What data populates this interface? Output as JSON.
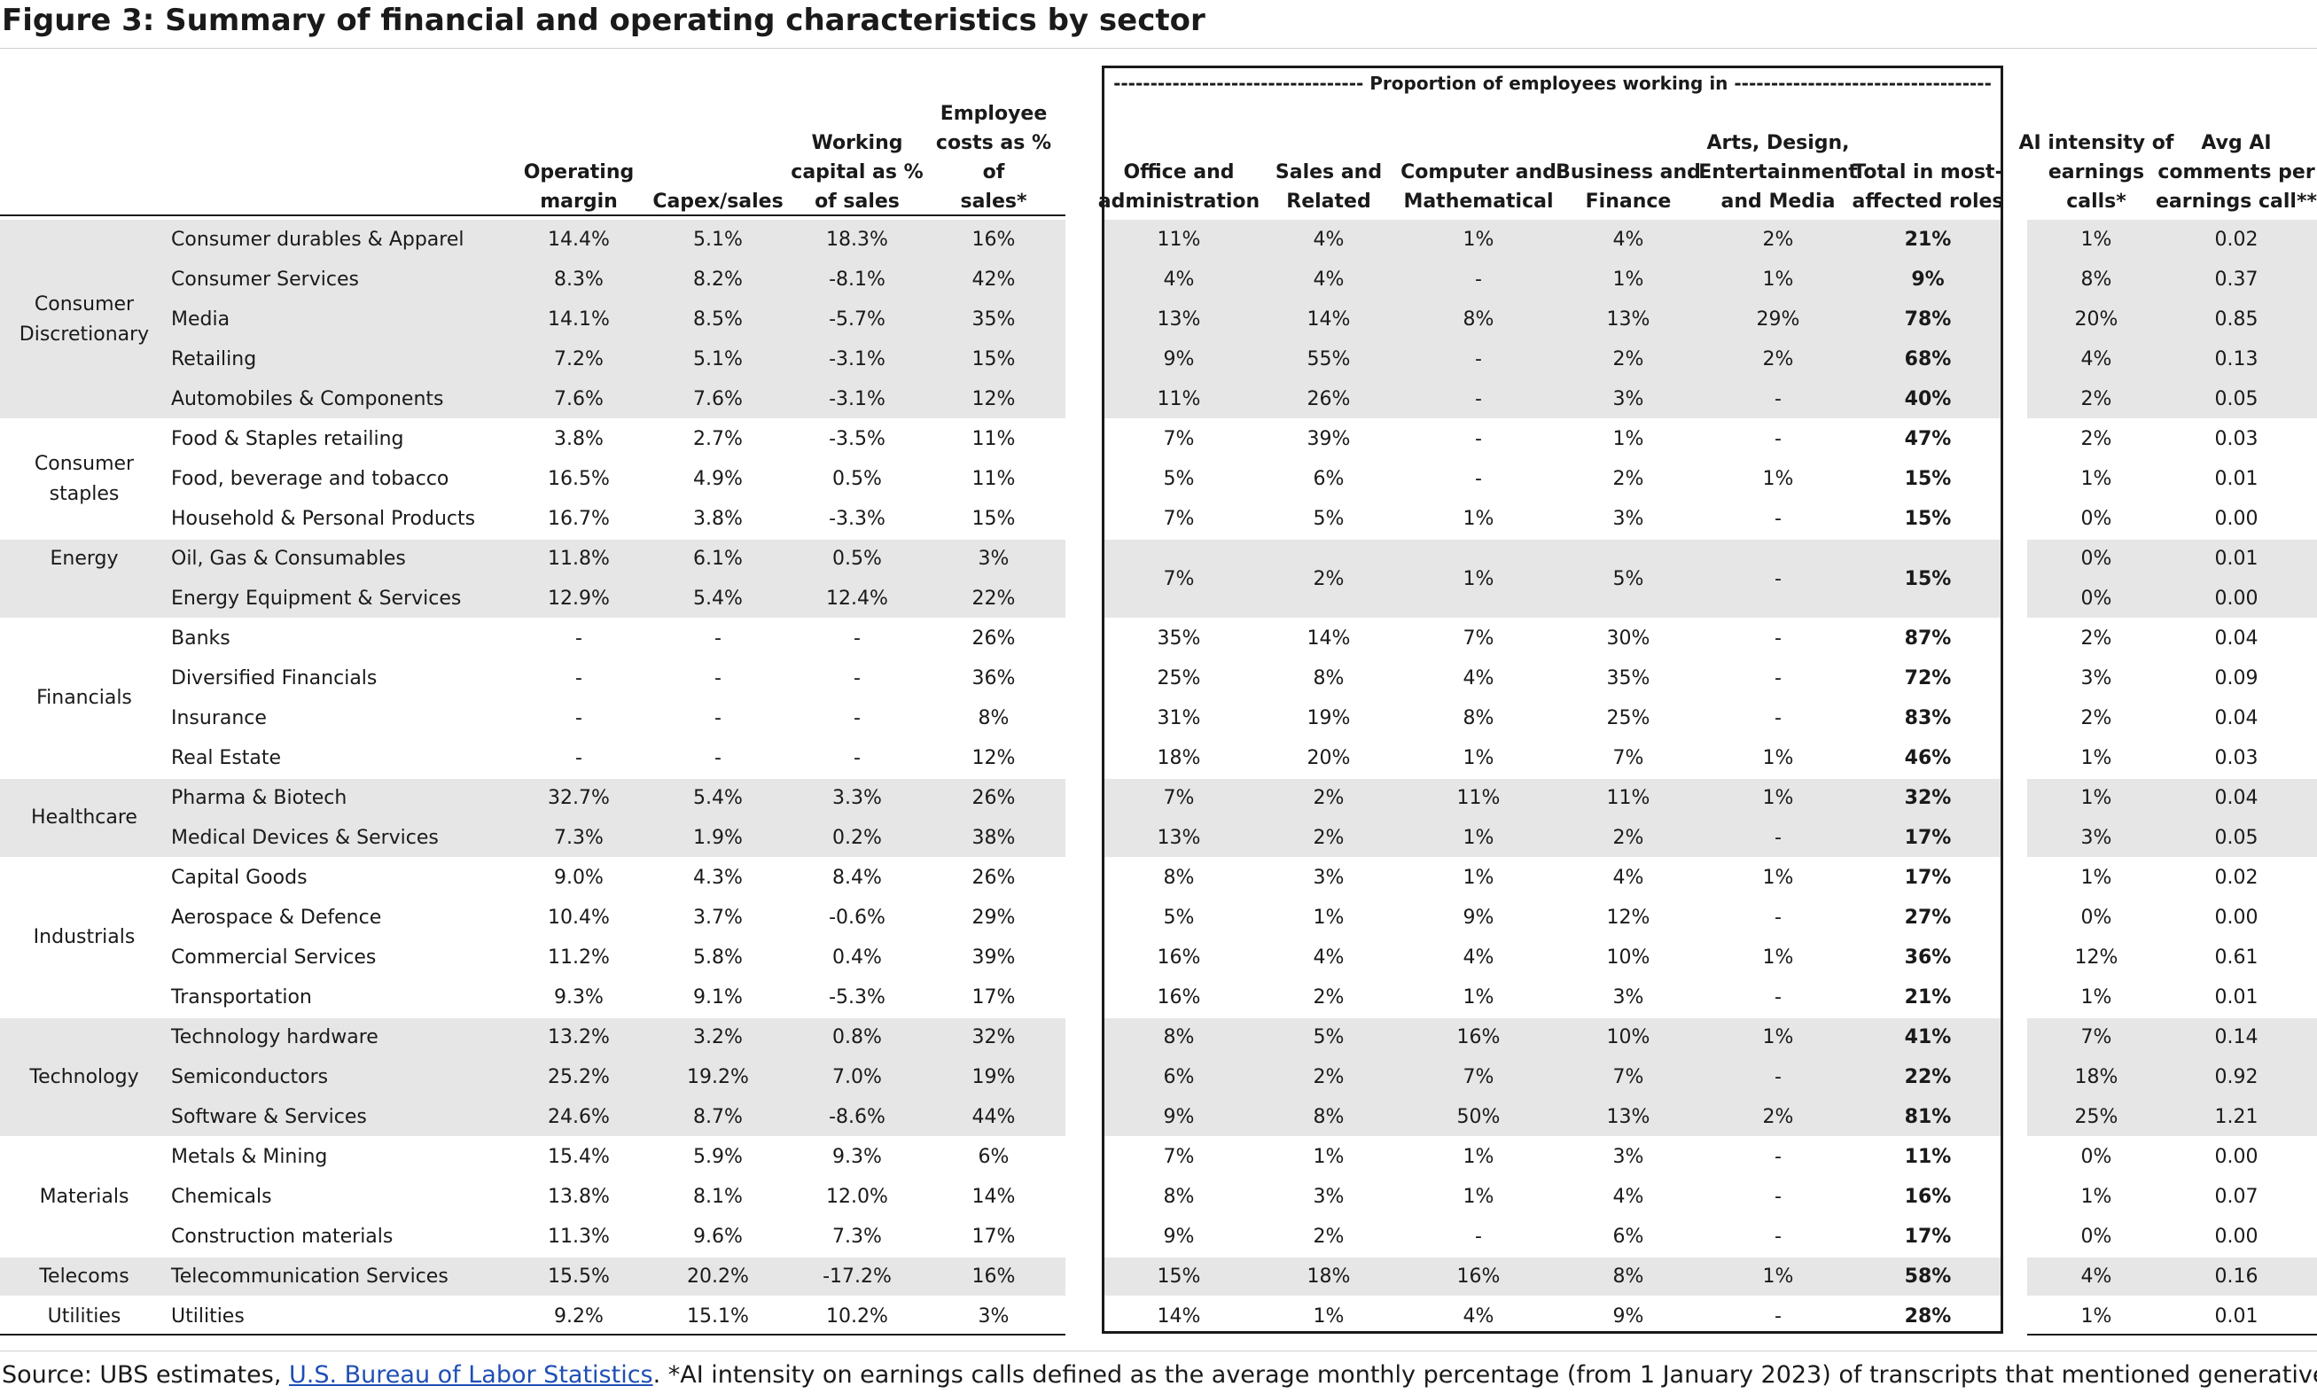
{
  "title": "Figure 3: Summary of financial and operating characteristics by sector",
  "box_header": "---------------------------------- Proportion of employees working in -----------------------------------",
  "columns": [
    "Operating margin",
    "Capex/sales",
    "Working capital as % of sales",
    "Employee costs as % of sales*",
    "Office and administration",
    "Sales and Related",
    "Computer and Mathematical",
    "Business and Finance",
    "Arts, Design, Entertainment and Media",
    "Total in most-affected roles",
    "AI intensity of earnings calls*",
    "Avg AI comments per earnings call**"
  ],
  "column_header_lines": [
    [
      "Operating",
      "margin"
    ],
    [
      "Capex/sales"
    ],
    [
      "Working",
      "capital as %",
      "of sales"
    ],
    [
      "Employee",
      "costs as % of",
      "sales*"
    ],
    [
      "Office and",
      "administration"
    ],
    [
      "Sales and",
      "Related"
    ],
    [
      "Computer and",
      "Mathematical"
    ],
    [
      "Business and",
      "Finance"
    ],
    [
      "Arts, Design,",
      "Entertainment",
      "and Media"
    ],
    [
      "Total in most-",
      "affected roles"
    ],
    [
      "AI intensity of",
      "earnings",
      "calls*"
    ],
    [
      "Avg AI",
      "comments per",
      "earnings call**"
    ]
  ],
  "sectors": [
    {
      "name": "Consumer Discretionary",
      "label_lines": [
        "Consumer",
        "Discretionary"
      ],
      "shaded": true,
      "rows": [
        {
          "industry": "Consumer durables & Apparel",
          "operating_margin": "14.4%",
          "capex_sales": "5.1%",
          "working_capital": "18.3%",
          "employee_costs": "16%",
          "office_admin": "11%",
          "sales_related": "4%",
          "computer_math": "1%",
          "business_finance": "4%",
          "arts_media": "2%",
          "total_affected": "21%",
          "ai_intensity": "1%",
          "avg_ai_comments": "0.02"
        },
        {
          "industry": "Consumer Services",
          "operating_margin": "8.3%",
          "capex_sales": "8.2%",
          "working_capital": "-8.1%",
          "employee_costs": "42%",
          "office_admin": "4%",
          "sales_related": "4%",
          "computer_math": "-",
          "business_finance": "1%",
          "arts_media": "1%",
          "total_affected": "9%",
          "ai_intensity": "8%",
          "avg_ai_comments": "0.37"
        },
        {
          "industry": "Media",
          "operating_margin": "14.1%",
          "capex_sales": "8.5%",
          "working_capital": "-5.7%",
          "employee_costs": "35%",
          "office_admin": "13%",
          "sales_related": "14%",
          "computer_math": "8%",
          "business_finance": "13%",
          "arts_media": "29%",
          "total_affected": "78%",
          "ai_intensity": "20%",
          "avg_ai_comments": "0.85"
        },
        {
          "industry": "Retailing",
          "operating_margin": "7.2%",
          "capex_sales": "5.1%",
          "working_capital": "-3.1%",
          "employee_costs": "15%",
          "office_admin": "9%",
          "sales_related": "55%",
          "computer_math": "-",
          "business_finance": "2%",
          "arts_media": "2%",
          "total_affected": "68%",
          "ai_intensity": "4%",
          "avg_ai_comments": "0.13"
        },
        {
          "industry": "Automobiles & Components",
          "operating_margin": "7.6%",
          "capex_sales": "7.6%",
          "working_capital": "-3.1%",
          "employee_costs": "12%",
          "office_admin": "11%",
          "sales_related": "26%",
          "computer_math": "-",
          "business_finance": "3%",
          "arts_media": "-",
          "total_affected": "40%",
          "ai_intensity": "2%",
          "avg_ai_comments": "0.05"
        }
      ]
    },
    {
      "name": "Consumer staples",
      "label_lines": [
        "Consumer",
        "staples"
      ],
      "shaded": false,
      "rows": [
        {
          "industry": "Food & Staples retailing",
          "operating_margin": "3.8%",
          "capex_sales": "2.7%",
          "working_capital": "-3.5%",
          "employee_costs": "11%",
          "office_admin": "7%",
          "sales_related": "39%",
          "computer_math": "-",
          "business_finance": "1%",
          "arts_media": "-",
          "total_affected": "47%",
          "ai_intensity": "2%",
          "avg_ai_comments": "0.03"
        },
        {
          "industry": "Food, beverage and tobacco",
          "operating_margin": "16.5%",
          "capex_sales": "4.9%",
          "working_capital": "0.5%",
          "employee_costs": "11%",
          "office_admin": "5%",
          "sales_related": "6%",
          "computer_math": "-",
          "business_finance": "2%",
          "arts_media": "1%",
          "total_affected": "15%",
          "ai_intensity": "1%",
          "avg_ai_comments": "0.01"
        },
        {
          "industry": "Household & Personal Products",
          "operating_margin": "16.7%",
          "capex_sales": "3.8%",
          "working_capital": "-3.3%",
          "employee_costs": "15%",
          "office_admin": "7%",
          "sales_related": "5%",
          "computer_math": "1%",
          "business_finance": "3%",
          "arts_media": "-",
          "total_affected": "15%",
          "ai_intensity": "0%",
          "avg_ai_comments": "0.00"
        }
      ]
    },
    {
      "name": "Energy",
      "label_lines": [
        "Energy"
      ],
      "label_align": "top",
      "shaded": true,
      "merged_roles": {
        "office_admin": "7%",
        "sales_related": "2%",
        "computer_math": "1%",
        "business_finance": "5%",
        "arts_media": "-",
        "total_affected": "15%"
      },
      "rows": [
        {
          "industry": "Oil, Gas & Consumables",
          "operating_margin": "11.8%",
          "capex_sales": "6.1%",
          "working_capital": "0.5%",
          "employee_costs": "3%",
          "ai_intensity": "0%",
          "avg_ai_comments": "0.01"
        },
        {
          "industry": "Energy Equipment & Services",
          "operating_margin": "12.9%",
          "capex_sales": "5.4%",
          "working_capital": "12.4%",
          "employee_costs": "22%",
          "ai_intensity": "0%",
          "avg_ai_comments": "0.00"
        }
      ]
    },
    {
      "name": "Financials",
      "label_lines": [
        "Financials"
      ],
      "shaded": false,
      "rows": [
        {
          "industry": "Banks",
          "operating_margin": "-",
          "capex_sales": "-",
          "working_capital": "-",
          "employee_costs": "26%",
          "office_admin": "35%",
          "sales_related": "14%",
          "computer_math": "7%",
          "business_finance": "30%",
          "arts_media": "-",
          "total_affected": "87%",
          "ai_intensity": "2%",
          "avg_ai_comments": "0.04"
        },
        {
          "industry": "Diversified Financials",
          "operating_margin": "-",
          "capex_sales": "-",
          "working_capital": "-",
          "employee_costs": "36%",
          "office_admin": "25%",
          "sales_related": "8%",
          "computer_math": "4%",
          "business_finance": "35%",
          "arts_media": "-",
          "total_affected": "72%",
          "ai_intensity": "3%",
          "avg_ai_comments": "0.09"
        },
        {
          "industry": "Insurance",
          "operating_margin": "-",
          "capex_sales": "-",
          "working_capital": "-",
          "employee_costs": "8%",
          "office_admin": "31%",
          "sales_related": "19%",
          "computer_math": "8%",
          "business_finance": "25%",
          "arts_media": "-",
          "total_affected": "83%",
          "ai_intensity": "2%",
          "avg_ai_comments": "0.04"
        },
        {
          "industry": "Real Estate",
          "operating_margin": "-",
          "capex_sales": "-",
          "working_capital": "-",
          "employee_costs": "12%",
          "office_admin": "18%",
          "sales_related": "20%",
          "computer_math": "1%",
          "business_finance": "7%",
          "arts_media": "1%",
          "total_affected": "46%",
          "ai_intensity": "1%",
          "avg_ai_comments": "0.03"
        }
      ]
    },
    {
      "name": "Healthcare",
      "label_lines": [
        "Healthcare"
      ],
      "shaded": true,
      "rows": [
        {
          "industry": "Pharma & Biotech",
          "operating_margin": "32.7%",
          "capex_sales": "5.4%",
          "working_capital": "3.3%",
          "employee_costs": "26%",
          "office_admin": "7%",
          "sales_related": "2%",
          "computer_math": "11%",
          "business_finance": "11%",
          "arts_media": "1%",
          "total_affected": "32%",
          "ai_intensity": "1%",
          "avg_ai_comments": "0.04"
        },
        {
          "industry": "Medical Devices & Services",
          "operating_margin": "7.3%",
          "capex_sales": "1.9%",
          "working_capital": "0.2%",
          "employee_costs": "38%",
          "office_admin": "13%",
          "sales_related": "2%",
          "computer_math": "1%",
          "business_finance": "2%",
          "arts_media": "-",
          "total_affected": "17%",
          "ai_intensity": "3%",
          "avg_ai_comments": "0.05"
        }
      ]
    },
    {
      "name": "Industrials",
      "label_lines": [
        "Industrials"
      ],
      "shaded": false,
      "rows": [
        {
          "industry": "Capital Goods",
          "operating_margin": "9.0%",
          "capex_sales": "4.3%",
          "working_capital": "8.4%",
          "employee_costs": "26%",
          "office_admin": "8%",
          "sales_related": "3%",
          "computer_math": "1%",
          "business_finance": "4%",
          "arts_media": "1%",
          "total_affected": "17%",
          "ai_intensity": "1%",
          "avg_ai_comments": "0.02"
        },
        {
          "industry": "Aerospace & Defence",
          "operating_margin": "10.4%",
          "capex_sales": "3.7%",
          "working_capital": "-0.6%",
          "employee_costs": "29%",
          "office_admin": "5%",
          "sales_related": "1%",
          "computer_math": "9%",
          "business_finance": "12%",
          "arts_media": "-",
          "total_affected": "27%",
          "ai_intensity": "0%",
          "avg_ai_comments": "0.00"
        },
        {
          "industry": "Commercial Services",
          "operating_margin": "11.2%",
          "capex_sales": "5.8%",
          "working_capital": "0.4%",
          "employee_costs": "39%",
          "office_admin": "16%",
          "sales_related": "4%",
          "computer_math": "4%",
          "business_finance": "10%",
          "arts_media": "1%",
          "total_affected": "36%",
          "ai_intensity": "12%",
          "avg_ai_comments": "0.61"
        },
        {
          "industry": "Transportation",
          "operating_margin": "9.3%",
          "capex_sales": "9.1%",
          "working_capital": "-5.3%",
          "employee_costs": "17%",
          "office_admin": "16%",
          "sales_related": "2%",
          "computer_math": "1%",
          "business_finance": "3%",
          "arts_media": "-",
          "total_affected": "21%",
          "ai_intensity": "1%",
          "avg_ai_comments": "0.01"
        }
      ]
    },
    {
      "name": "Technology",
      "label_lines": [
        "Technology"
      ],
      "shaded": true,
      "rows": [
        {
          "industry": "Technology hardware",
          "operating_margin": "13.2%",
          "capex_sales": "3.2%",
          "working_capital": "0.8%",
          "employee_costs": "32%",
          "office_admin": "8%",
          "sales_related": "5%",
          "computer_math": "16%",
          "business_finance": "10%",
          "arts_media": "1%",
          "total_affected": "41%",
          "ai_intensity": "7%",
          "avg_ai_comments": "0.14"
        },
        {
          "industry": "Semiconductors",
          "operating_margin": "25.2%",
          "capex_sales": "19.2%",
          "working_capital": "7.0%",
          "employee_costs": "19%",
          "office_admin": "6%",
          "sales_related": "2%",
          "computer_math": "7%",
          "business_finance": "7%",
          "arts_media": "-",
          "total_affected": "22%",
          "ai_intensity": "18%",
          "avg_ai_comments": "0.92"
        },
        {
          "industry": "Software & Services",
          "operating_margin": "24.6%",
          "capex_sales": "8.7%",
          "working_capital": "-8.6%",
          "employee_costs": "44%",
          "office_admin": "9%",
          "sales_related": "8%",
          "computer_math": "50%",
          "business_finance": "13%",
          "arts_media": "2%",
          "total_affected": "81%",
          "ai_intensity": "25%",
          "avg_ai_comments": "1.21"
        }
      ]
    },
    {
      "name": "Materials",
      "label_lines": [
        "Materials"
      ],
      "shaded": false,
      "rows": [
        {
          "industry": "Metals & Mining",
          "operating_margin": "15.4%",
          "capex_sales": "5.9%",
          "working_capital": "9.3%",
          "employee_costs": "6%",
          "office_admin": "7%",
          "sales_related": "1%",
          "computer_math": "1%",
          "business_finance": "3%",
          "arts_media": "-",
          "total_affected": "11%",
          "ai_intensity": "0%",
          "avg_ai_comments": "0.00"
        },
        {
          "industry": "Chemicals",
          "operating_margin": "13.8%",
          "capex_sales": "8.1%",
          "working_capital": "12.0%",
          "employee_costs": "14%",
          "office_admin": "8%",
          "sales_related": "3%",
          "computer_math": "1%",
          "business_finance": "4%",
          "arts_media": "-",
          "total_affected": "16%",
          "ai_intensity": "1%",
          "avg_ai_comments": "0.07"
        },
        {
          "industry": "Construction materials",
          "operating_margin": "11.3%",
          "capex_sales": "9.6%",
          "working_capital": "7.3%",
          "employee_costs": "17%",
          "office_admin": "9%",
          "sales_related": "2%",
          "computer_math": "-",
          "business_finance": "6%",
          "arts_media": "-",
          "total_affected": "17%",
          "ai_intensity": "0%",
          "avg_ai_comments": "0.00"
        }
      ]
    },
    {
      "name": "Telecoms",
      "label_lines": [
        "Telecoms"
      ],
      "shaded": true,
      "rows": [
        {
          "industry": "Telecommunication Services",
          "operating_margin": "15.5%",
          "capex_sales": "20.2%",
          "working_capital": "-17.2%",
          "employee_costs": "16%",
          "office_admin": "15%",
          "sales_related": "18%",
          "computer_math": "16%",
          "business_finance": "8%",
          "arts_media": "1%",
          "total_affected": "58%",
          "ai_intensity": "4%",
          "avg_ai_comments": "0.16"
        }
      ]
    },
    {
      "name": "Utilities",
      "label_lines": [
        "Utilities"
      ],
      "shaded": false,
      "rows": [
        {
          "industry": "Utilities",
          "operating_margin": "9.2%",
          "capex_sales": "15.1%",
          "working_capital": "10.2%",
          "employee_costs": "3%",
          "office_admin": "14%",
          "sales_related": "1%",
          "computer_math": "4%",
          "business_finance": "9%",
          "arts_media": "-",
          "total_affected": "28%",
          "ai_intensity": "1%",
          "avg_ai_comments": "0.01"
        }
      ]
    }
  ],
  "source": {
    "prefix": "Source: UBS estimates, ",
    "link_text": "U.S. Bureau of Labor Statistics",
    "suffix": ". *AI intensity on earnings calls defined as the average monthly percentage (from 1 January 2023) of transcripts that mentioned generative AI out of the total number of"
  },
  "colors": {
    "shade": "#e6e6e6",
    "text": "#1a1a1a",
    "link": "#1f4fb5"
  }
}
